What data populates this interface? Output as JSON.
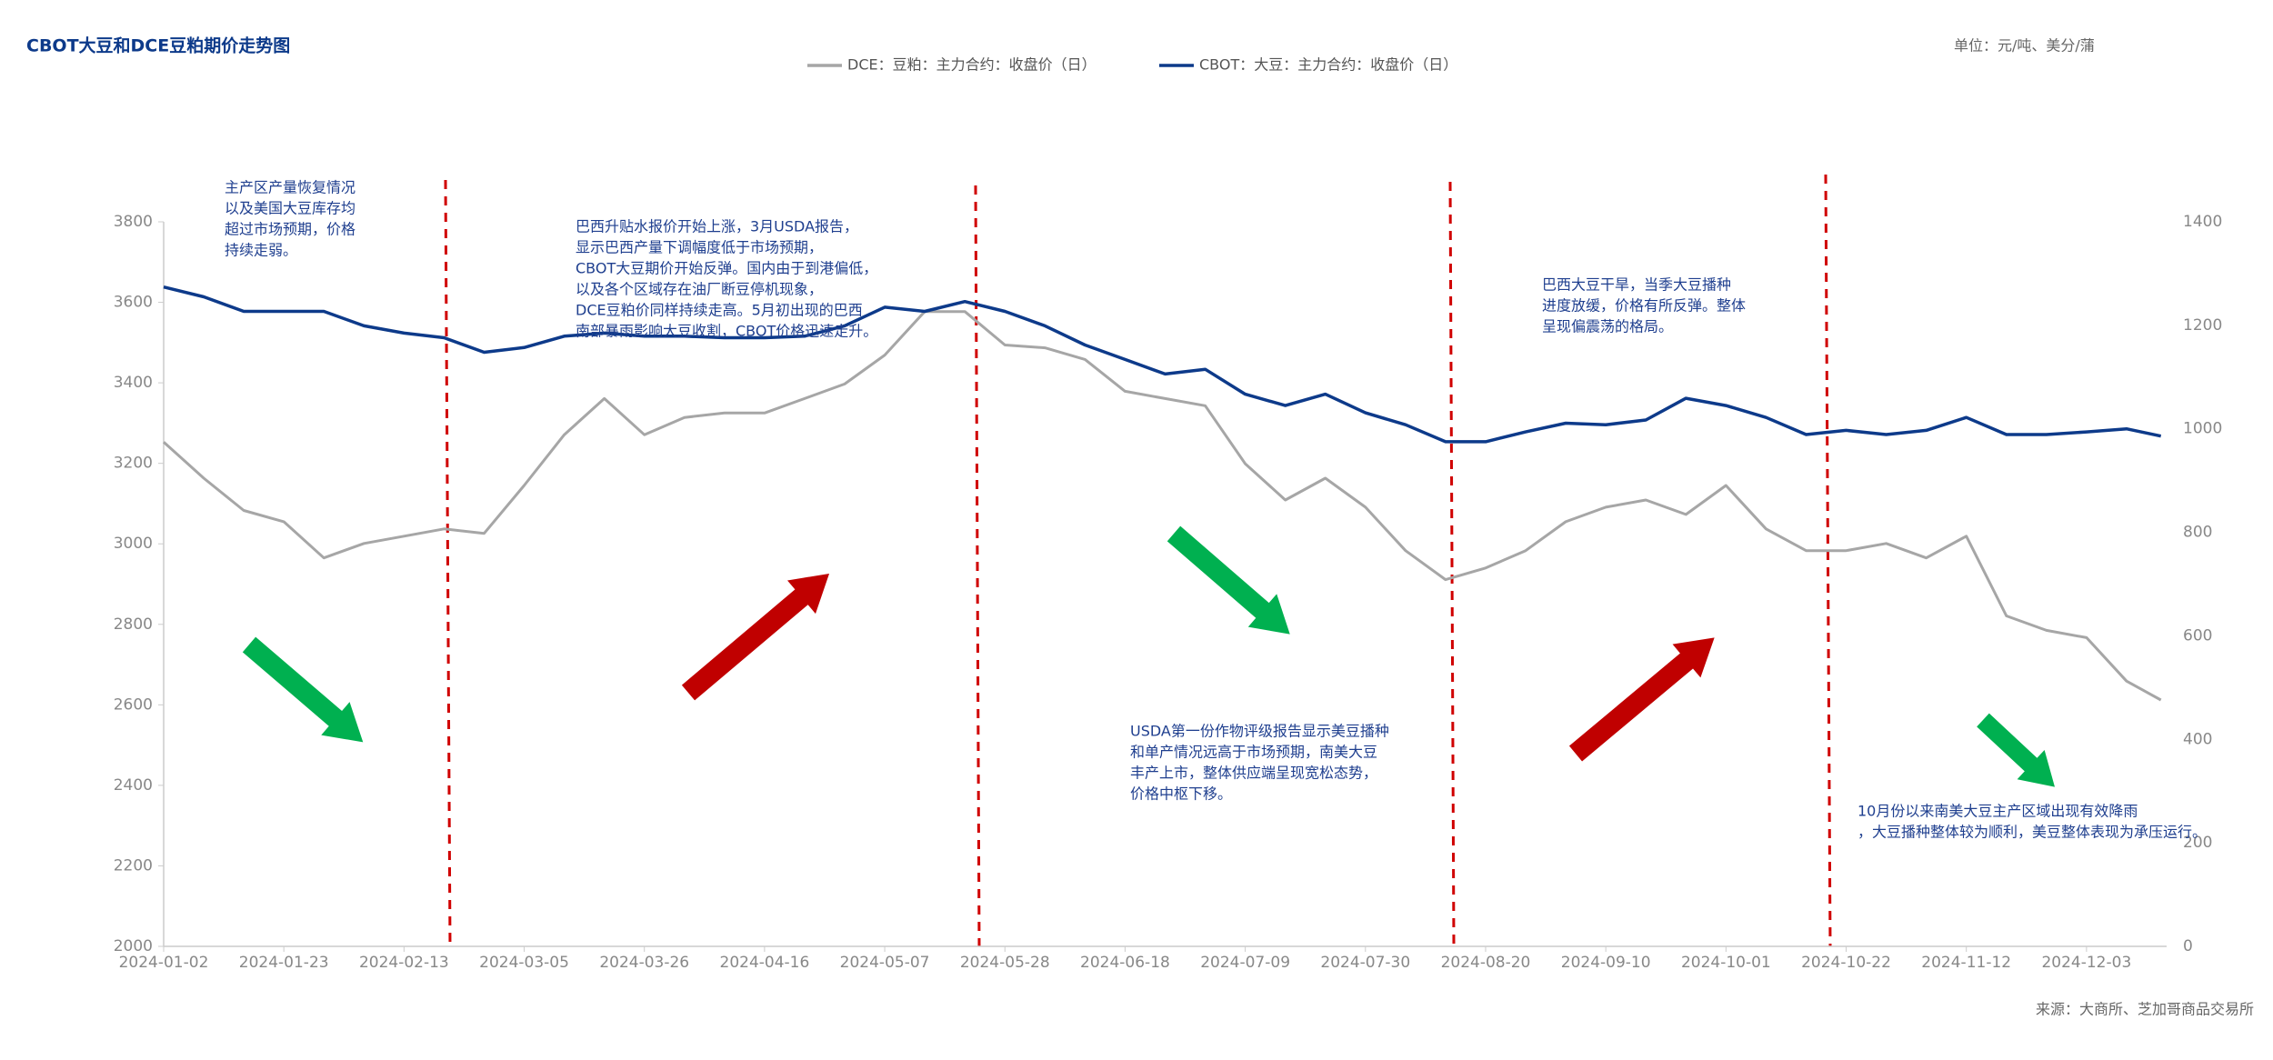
{
  "chart_data": {
    "type": "line",
    "title": "CBOT大豆和DCE豆粕期价走势图",
    "unit": "单位：元/吨、美分/蒲",
    "source": "来源：大商所、芝加哥商品交易所",
    "x": [
      "2024-01-02",
      "2024-01-09",
      "2024-01-16",
      "2024-01-23",
      "2024-01-30",
      "2024-02-06",
      "2024-02-13",
      "2024-02-20",
      "2024-02-27",
      "2024-03-05",
      "2024-03-12",
      "2024-03-19",
      "2024-03-26",
      "2024-04-02",
      "2024-04-09",
      "2024-04-16",
      "2024-04-23",
      "2024-04-30",
      "2024-05-07",
      "2024-05-14",
      "2024-05-21",
      "2024-05-28",
      "2024-06-04",
      "2024-06-11",
      "2024-06-18",
      "2024-06-25",
      "2024-07-02",
      "2024-07-09",
      "2024-07-16",
      "2024-07-23",
      "2024-07-30",
      "2024-08-06",
      "2024-08-13",
      "2024-08-20",
      "2024-08-27",
      "2024-09-03",
      "2024-09-10",
      "2024-09-17",
      "2024-09-24",
      "2024-10-01",
      "2024-10-08",
      "2024-10-15",
      "2024-10-22",
      "2024-10-29",
      "2024-11-05",
      "2024-11-12",
      "2024-11-19",
      "2024-11-26",
      "2024-12-03",
      "2024-12-10",
      "2024-12-16"
    ],
    "series": [
      {
        "name": "DCE：豆粕：主力合约：收盘价（日）",
        "color": "#a6a6a6",
        "values": [
          3253,
          3163,
          3083,
          3055,
          2965,
          3001,
          3019,
          3037,
          3026,
          3145,
          3271,
          3361,
          3271,
          3314,
          3325,
          3325,
          3361,
          3397,
          3469,
          3577,
          3577,
          3494,
          3487,
          3458,
          3379,
          3361,
          3343,
          3199,
          3109,
          3163,
          3091,
          2983,
          2911,
          2940,
          2983,
          3055,
          3091,
          3109,
          3073,
          3145,
          3037,
          2983,
          2983,
          3001,
          2965,
          3019,
          2821,
          2785,
          2767,
          2659,
          2612
        ]
      },
      {
        "name": "CBOT：大豆：主力合约：收盘价（日）",
        "color": "#0d3a8a",
        "axis": "y2",
        "values": [
          1274,
          1255,
          1227,
          1227,
          1227,
          1199,
          1185,
          1176,
          1148,
          1157,
          1179,
          1185,
          1179,
          1179,
          1176,
          1176,
          1179,
          1199,
          1235,
          1227,
          1246,
          1227,
          1199,
          1162,
          1134,
          1106,
          1115,
          1067,
          1045,
          1067,
          1031,
          1008,
          975,
          975,
          994,
          1011,
          1008,
          1017,
          1059,
          1045,
          1022,
          989,
          997,
          989,
          997,
          1022,
          989,
          989,
          994,
          1000,
          986
        ]
      }
    ],
    "xlim": [
      "2024-01-02",
      "2024-12-17"
    ],
    "xticks": [
      "2024-01-02",
      "2024-01-23",
      "2024-02-13",
      "2024-03-05",
      "2024-03-26",
      "2024-04-16",
      "2024-05-07",
      "2024-05-28",
      "2024-06-18",
      "2024-07-09",
      "2024-07-30",
      "2024-08-20",
      "2024-09-10",
      "2024-10-01",
      "2024-10-22",
      "2024-11-12",
      "2024-12-03"
    ],
    "ylim": [
      2000,
      3800
    ],
    "yticks": [
      2000,
      2200,
      2400,
      2600,
      2800,
      3000,
      3200,
      3400,
      3600,
      3800
    ],
    "y2lim": [
      0,
      1400
    ],
    "y2ticks": [
      0,
      200,
      400,
      600,
      800,
      1000,
      1200,
      1400
    ],
    "annotations": [
      [
        "主产区产量恢复情况",
        "以及美国大豆库存均",
        "超过市场预期，价格",
        "持续走弱。"
      ],
      [
        "巴西升贴水报价开始上涨，3月USDA报告，",
        "显示巴西产量下调幅度低于市场预期，",
        "CBOT大豆期价开始反弹。国内由于到港偏低，",
        "以及各个区域存在油厂断豆停机现象，",
        "DCE豆粕价同样持续走高。5月初出现的巴西",
        "南部暴雨影响大豆收割，CBOT价格迅速走升。"
      ],
      [
        "USDA第一份作物评级报告显示美豆播种",
        "和单产情况远高于市场预期，南美大豆",
        "丰产上市，整体供应端呈现宽松态势，",
        "价格中枢下移。"
      ],
      [
        "巴西大豆干旱，当季大豆播种",
        "进度放缓，价格有所反弹。整体",
        "呈现偏震荡的格局。"
      ],
      [
        "10月份以来南美大豆主产区域出现有效降雨",
        "，大豆播种整体较为顺利，美豆整体表现为承压运行。"
      ]
    ]
  }
}
